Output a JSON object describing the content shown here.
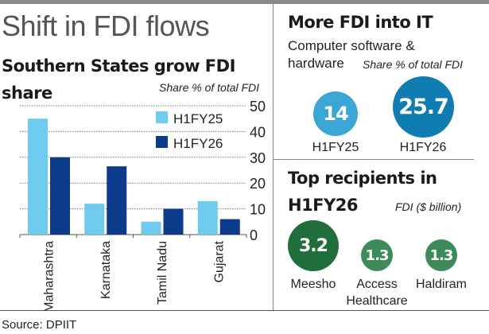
{
  "title": "Shift in FDI flows",
  "chart_data": {
    "type": "bar",
    "title": "Southern States grow FDI share",
    "ylabel": "Share % of total FDI",
    "categories": [
      "Maharashtra",
      "Karnataka",
      "Tamil Nadu",
      "Gujarat"
    ],
    "series": [
      {
        "name": "H1FY25",
        "values": [
          45,
          12,
          5,
          13
        ],
        "color": "#6ecbee"
      },
      {
        "name": "H1FY26",
        "values": [
          30,
          26.5,
          10,
          6
        ],
        "color": "#0d3b8c"
      }
    ],
    "ylim": [
      0,
      50
    ],
    "yticks": [
      "0",
      "10",
      "20",
      "30",
      "40",
      "50"
    ],
    "grid": true,
    "y_axis_side": "right",
    "legend": "top-right"
  },
  "it_panel": {
    "title": "More FDI into IT",
    "subtitle_line1": "Computer software &",
    "subtitle_line2": "hardware",
    "unit": "Share % of total FDI",
    "items": [
      {
        "value": "14",
        "label": "H1FY25",
        "color": "#3aa6d6"
      },
      {
        "value": "25.7",
        "label": "H1FY26",
        "color": "#0f7cb2"
      }
    ]
  },
  "recipients_panel": {
    "title_line1": "Top recipients in",
    "title_line2": "H1FY26",
    "unit": "FDI ($ billion)",
    "items": [
      {
        "value": "3.2",
        "label_line1": "Meesho",
        "label_line2": "",
        "color": "#1f6e3b"
      },
      {
        "value": "1.3",
        "label_line1": "Access",
        "label_line2": "Healthcare",
        "color": "#3d8a5b"
      },
      {
        "value": "1.3",
        "label_line1": "Haldiram",
        "label_line2": "",
        "color": "#3d8a5b"
      }
    ]
  },
  "source": "Source: DPIIT"
}
